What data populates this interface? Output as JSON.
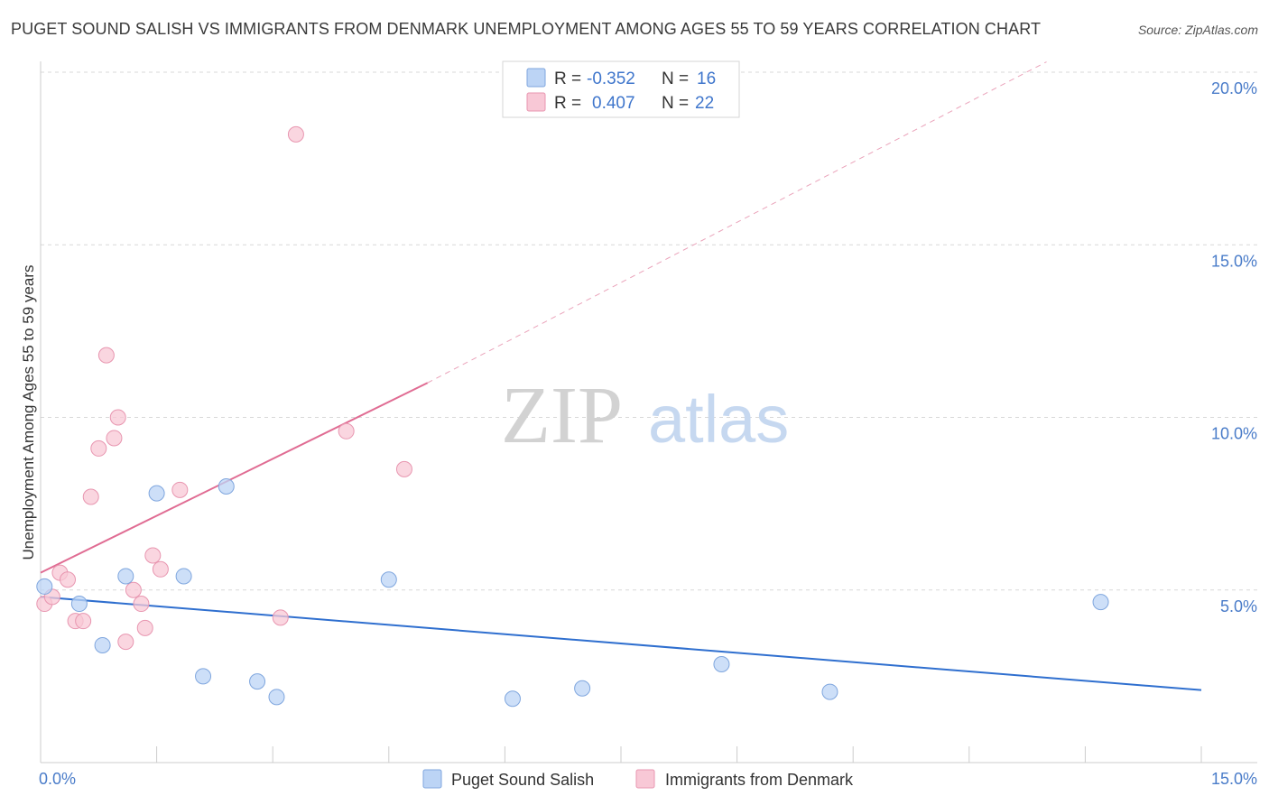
{
  "title": "PUGET SOUND SALISH VS IMMIGRANTS FROM DENMARK UNEMPLOYMENT AMONG AGES 55 TO 59 YEARS CORRELATION CHART",
  "source": "Source: ZipAtlas.com",
  "watermark": {
    "zip": "ZIP",
    "atlas": "atlas"
  },
  "legend": {
    "rows": [
      {
        "r_label": "R = ",
        "r_value": "-0.352",
        "n_label": "N = ",
        "n_value": "16",
        "color": "#aecbf2"
      },
      {
        "r_label": "R = ",
        "r_value": "0.407",
        "n_label": "N = ",
        "n_value": "22",
        "color": "#f7b9cb"
      }
    ]
  },
  "colors": {
    "blue_fill": "#bcd4f5",
    "blue_stroke": "#7fa6de",
    "blue_line": "#2f6fcf",
    "pink_fill": "#f8c8d6",
    "pink_stroke": "#e896b0",
    "pink_line": "#e06c93",
    "grid": "#d8d8d8"
  },
  "chart_data": {
    "type": "scatter",
    "title": "PUGET SOUND SALISH VS IMMIGRANTS FROM DENMARK UNEMPLOYMENT AMONG AGES 55 TO 59 YEARS CORRELATION CHART",
    "xlabel": "",
    "ylabel": "Unemployment Among Ages 55 to 59 years",
    "xlim": [
      0,
      15
    ],
    "ylim": [
      0,
      20
    ],
    "x_tick_labels": [
      "0.0%",
      "15.0%"
    ],
    "y_ticks": [
      5,
      10,
      15,
      20
    ],
    "y_tick_labels": [
      "5.0%",
      "10.0%",
      "15.0%",
      "20.0%"
    ],
    "grid": true,
    "legend_position": "top-center",
    "series": [
      {
        "name": "Puget Sound Salish",
        "color": "#bcd4f5",
        "points": [
          [
            0.05,
            5.1
          ],
          [
            0.5,
            4.6
          ],
          [
            0.8,
            3.4
          ],
          [
            1.1,
            5.4
          ],
          [
            1.5,
            7.8
          ],
          [
            1.85,
            5.4
          ],
          [
            2.1,
            2.5
          ],
          [
            2.4,
            8.0
          ],
          [
            2.8,
            2.35
          ],
          [
            3.05,
            1.9
          ],
          [
            4.5,
            5.3
          ],
          [
            6.1,
            1.85
          ],
          [
            7.0,
            2.15
          ],
          [
            8.8,
            2.85
          ],
          [
            10.2,
            2.05
          ],
          [
            13.7,
            4.65
          ]
        ],
        "trend": {
          "x": [
            0,
            15
          ],
          "y": [
            4.8,
            2.1
          ]
        }
      },
      {
        "name": "Immigrants from Denmark",
        "color": "#f8c8d6",
        "points": [
          [
            0.05,
            4.6
          ],
          [
            0.15,
            4.8
          ],
          [
            0.25,
            5.5
          ],
          [
            0.35,
            5.3
          ],
          [
            0.45,
            4.1
          ],
          [
            0.55,
            4.1
          ],
          [
            0.65,
            7.7
          ],
          [
            0.75,
            9.1
          ],
          [
            0.85,
            11.8
          ],
          [
            0.95,
            9.4
          ],
          [
            1.0,
            10.0
          ],
          [
            1.1,
            3.5
          ],
          [
            1.2,
            5.0
          ],
          [
            1.3,
            4.6
          ],
          [
            1.35,
            3.9
          ],
          [
            1.45,
            6.0
          ],
          [
            1.55,
            5.6
          ],
          [
            1.8,
            7.9
          ],
          [
            3.1,
            4.2
          ],
          [
            3.3,
            18.2
          ],
          [
            3.95,
            9.6
          ],
          [
            4.7,
            8.5
          ]
        ],
        "trend": {
          "x": [
            0,
            5.0
          ],
          "y": [
            5.5,
            11.0
          ]
        },
        "trend_extension": {
          "x": [
            5.0,
            13.0
          ],
          "y": [
            11.0,
            20.3
          ]
        }
      }
    ]
  },
  "bottom_legend": [
    {
      "label": "Puget Sound Salish",
      "color": "#bcd4f5"
    },
    {
      "label": "Immigrants from Denmark",
      "color": "#f8c8d6"
    }
  ]
}
